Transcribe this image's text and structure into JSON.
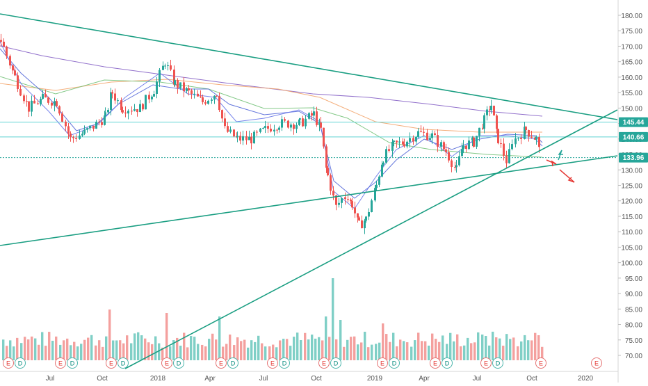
{
  "chart_data": {
    "type": "candlestick",
    "x_ticks": [
      "Jul",
      "Oct",
      "2018",
      "Apr",
      "Jul",
      "Oct",
      "2019",
      "Apr",
      "Jul",
      "Oct",
      "2020"
    ],
    "y_ticks": [
      "180.00",
      "175.00",
      "170.00",
      "165.00",
      "160.00",
      "155.00",
      "150.00",
      "145.00",
      "140.00",
      "135.00",
      "130.00",
      "125.00",
      "120.00",
      "115.00",
      "110.00",
      "105.00",
      "100.00",
      "95.00",
      "90.00",
      "85.00",
      "80.00",
      "75.00",
      "70.00"
    ],
    "ylim": [
      67,
      182
    ],
    "price_labels": [
      {
        "value": 145.44,
        "text": "145.44",
        "color": "#26a69a"
      },
      {
        "value": 140.66,
        "text": "140.66",
        "color": "#26a69a"
      },
      {
        "value": 133.96,
        "text": "133.96",
        "color": "#26a69a"
      }
    ],
    "horizontal_levels": [
      {
        "value": 145.44,
        "style": "solid",
        "color": "#5fd3d3"
      },
      {
        "value": 140.66,
        "style": "solid",
        "color": "#5fd3d3"
      },
      {
        "value": 133.96,
        "style": "dotted",
        "color": "#26a69a"
      }
    ],
    "event_markers": [
      "E",
      "D",
      "E",
      "D",
      "E",
      "D",
      "E",
      "D",
      "E",
      "D",
      "E",
      "D",
      "E",
      "D",
      "E",
      "D",
      "E",
      "D",
      "E",
      "D",
      "E",
      "E"
    ],
    "colors": {
      "up": "#26a69a",
      "down": "#ef5350",
      "vol_up": "#7fcfc6",
      "vol_down": "#f4a09e",
      "trend": "#1a9e82"
    }
  }
}
